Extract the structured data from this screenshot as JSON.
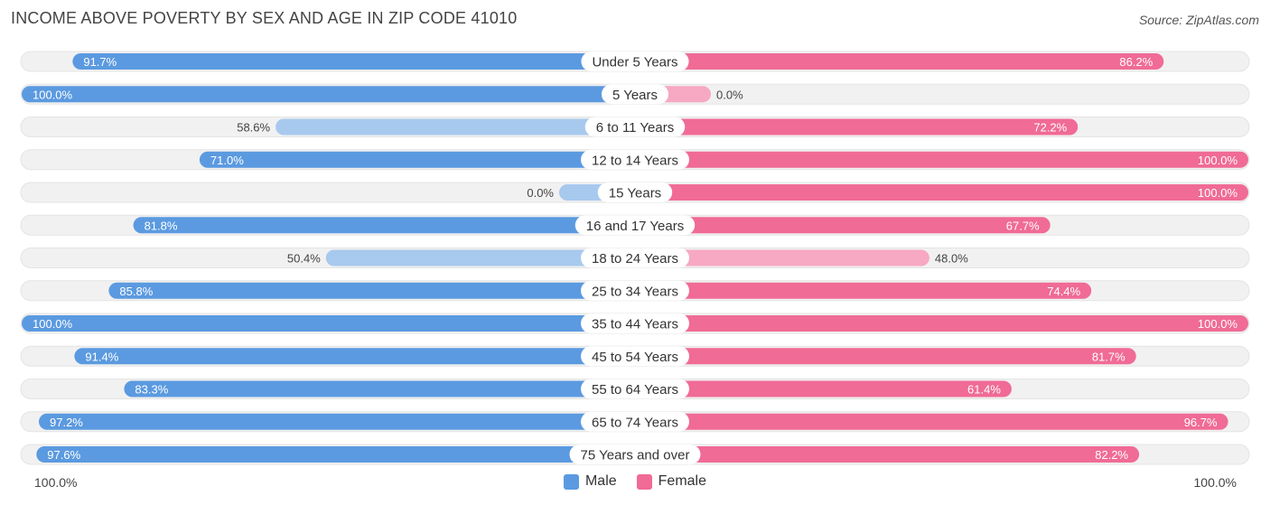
{
  "header": {
    "title": "INCOME ABOVE POVERTY BY SEX AND AGE IN ZIP CODE 41010",
    "source": "Source: ZipAtlas.com"
  },
  "colors": {
    "male": "#5b9ae0",
    "male_light": "#a8c9ee",
    "female": "#f06b96",
    "female_light": "#f7a8c2",
    "track": "#f1f1f1"
  },
  "legend": {
    "male": "Male",
    "female": "Female"
  },
  "axis": {
    "left": "100.0%",
    "right": "100.0%"
  },
  "chart_data": {
    "type": "bar",
    "orientation": "horizontal-diverging",
    "categories": [
      "Under 5 Years",
      "5 Years",
      "6 to 11 Years",
      "12 to 14 Years",
      "15 Years",
      "16 and 17 Years",
      "18 to 24 Years",
      "25 to 34 Years",
      "35 to 44 Years",
      "45 to 54 Years",
      "55 to 64 Years",
      "65 to 74 Years",
      "75 Years and over"
    ],
    "series": [
      {
        "name": "Male",
        "values": [
          91.7,
          100.0,
          58.6,
          71.0,
          0.0,
          81.8,
          50.4,
          85.8,
          100.0,
          91.4,
          83.3,
          97.2,
          97.6
        ],
        "labels": [
          "91.7%",
          "100.0%",
          "58.6%",
          "71.0%",
          "0.0%",
          "81.8%",
          "50.4%",
          "85.8%",
          "100.0%",
          "91.4%",
          "83.3%",
          "97.2%",
          "97.6%"
        ]
      },
      {
        "name": "Female",
        "values": [
          86.2,
          0.0,
          72.2,
          100.0,
          100.0,
          67.7,
          48.0,
          74.4,
          100.0,
          81.7,
          61.4,
          96.7,
          82.2
        ],
        "labels": [
          "86.2%",
          "0.0%",
          "72.2%",
          "100.0%",
          "100.0%",
          "67.7%",
          "48.0%",
          "74.4%",
          "100.0%",
          "81.7%",
          "61.4%",
          "96.7%",
          "82.2%"
        ]
      }
    ],
    "xlim": [
      0,
      100
    ],
    "legend_position": "bottom-center"
  }
}
